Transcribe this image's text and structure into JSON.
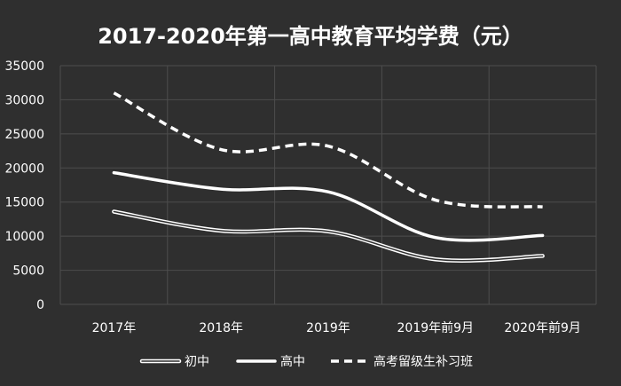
{
  "chart_data": {
    "type": "line",
    "title": "2017-2020年第一高中教育平均学费（元）",
    "categories": [
      "2017年",
      "2018年",
      "2019年",
      "2019年前9月",
      "2020年前9月"
    ],
    "ylim": [
      0,
      35000
    ],
    "yticks": [
      0,
      5000,
      10000,
      15000,
      20000,
      25000,
      30000,
      35000
    ],
    "grid": true,
    "legend_position": "bottom",
    "series": [
      {
        "name": "初中",
        "values": [
          13600,
          10800,
          10700,
          6600,
          7100
        ],
        "style": "double",
        "color": "#ffffff"
      },
      {
        "name": "高中",
        "values": [
          19300,
          16900,
          16500,
          9800,
          10100
        ],
        "style": "solid",
        "color": "#ffffff"
      },
      {
        "name": "高考留级生补习班",
        "values": [
          31000,
          22700,
          23200,
          15300,
          14300
        ],
        "style": "dashed",
        "color": "#ffffff"
      }
    ]
  }
}
